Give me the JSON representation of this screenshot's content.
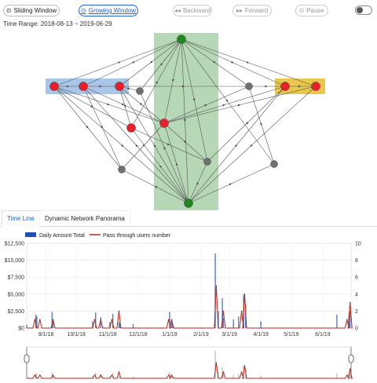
{
  "controls": {
    "sliding_window": "Sliding Window",
    "growing_window": "Growing Window",
    "backward": "Backward",
    "forward": "Forward",
    "pause": "Pause"
  },
  "time_range": "Time Range: 2018-08-13 ~ 2019-06-29",
  "tabs": {
    "timeline": "Time Line",
    "panorama": "Dynamic Network Panorama"
  },
  "colors": {
    "accent": "#1f63c6",
    "red_node": "#e8202a",
    "gray_node": "#707070",
    "green_node": "#1e8a1e",
    "blue_band": "#a9c6e8",
    "yellow_band": "#e8c84a",
    "green_band": "#b7d8b7",
    "bar": "#1f4fb4",
    "line": "#b22a1a"
  },
  "chart_data": {
    "type": "bar",
    "legend": [
      "Daily Amount Total",
      "Pass through users number"
    ],
    "y_left": {
      "ticks": [
        "$12,500",
        "$10,000",
        "$7,500",
        "$5,000",
        "$2,500",
        "$0"
      ],
      "range": [
        0,
        12500
      ]
    },
    "y_right": {
      "ticks": [
        "10",
        "8",
        "6",
        "4",
        "2",
        "0"
      ],
      "range": [
        0,
        10
      ]
    },
    "x_ticks": [
      "9/1/18",
      "10/1/18",
      "11/1/18",
      "12/1/18",
      "1/1/19",
      "2/1/19",
      "3/1/19",
      "4/1/19",
      "5/1/19",
      "6/1/19"
    ],
    "x_range": [
      "2018-08-13",
      "2019-06-29"
    ],
    "series": [
      {
        "name": "Daily Amount Total",
        "kind": "bar",
        "points": [
          [
            "2018-08-13",
            500
          ],
          [
            "2018-08-22",
            2000
          ],
          [
            "2018-08-23",
            1700
          ],
          [
            "2018-09-07",
            2400
          ],
          [
            "2018-09-08",
            1000
          ],
          [
            "2018-10-17",
            1000
          ],
          [
            "2018-10-20",
            2300
          ],
          [
            "2018-10-25",
            1600
          ],
          [
            "2018-11-03",
            900
          ],
          [
            "2018-11-06",
            2100
          ],
          [
            "2018-11-12",
            900
          ],
          [
            "2018-11-13",
            700
          ],
          [
            "2018-11-26",
            600
          ],
          [
            "2019-01-01",
            2400
          ],
          [
            "2019-01-03",
            1000
          ],
          [
            "2019-01-04",
            500
          ],
          [
            "2019-02-15",
            11000
          ],
          [
            "2019-02-18",
            2500
          ],
          [
            "2019-02-22",
            4400
          ],
          [
            "2019-02-23",
            1500
          ],
          [
            "2019-03-05",
            1300
          ],
          [
            "2019-03-10",
            1700
          ],
          [
            "2019-03-15",
            4900
          ],
          [
            "2019-03-17",
            3500
          ],
          [
            "2019-04-01",
            1000
          ],
          [
            "2019-06-15",
            2000
          ],
          [
            "2019-06-27",
            2000
          ],
          [
            "2019-06-28",
            2500
          ]
        ]
      },
      {
        "name": "Pass through users number",
        "kind": "line",
        "points": [
          [
            "2018-08-21",
            1
          ],
          [
            "2018-08-26",
            1
          ],
          [
            "2018-09-08",
            1
          ],
          [
            "2018-10-19",
            1
          ],
          [
            "2018-10-25",
            1
          ],
          [
            "2018-11-05",
            1
          ],
          [
            "2018-11-12",
            2
          ],
          [
            "2018-12-31",
            1
          ],
          [
            "2019-01-03",
            1
          ],
          [
            "2019-02-16",
            5
          ],
          [
            "2019-02-23",
            2
          ],
          [
            "2019-03-13",
            2
          ],
          [
            "2019-03-16",
            4
          ],
          [
            "2019-06-25",
            1
          ],
          [
            "2019-06-28",
            3
          ]
        ]
      }
    ]
  }
}
